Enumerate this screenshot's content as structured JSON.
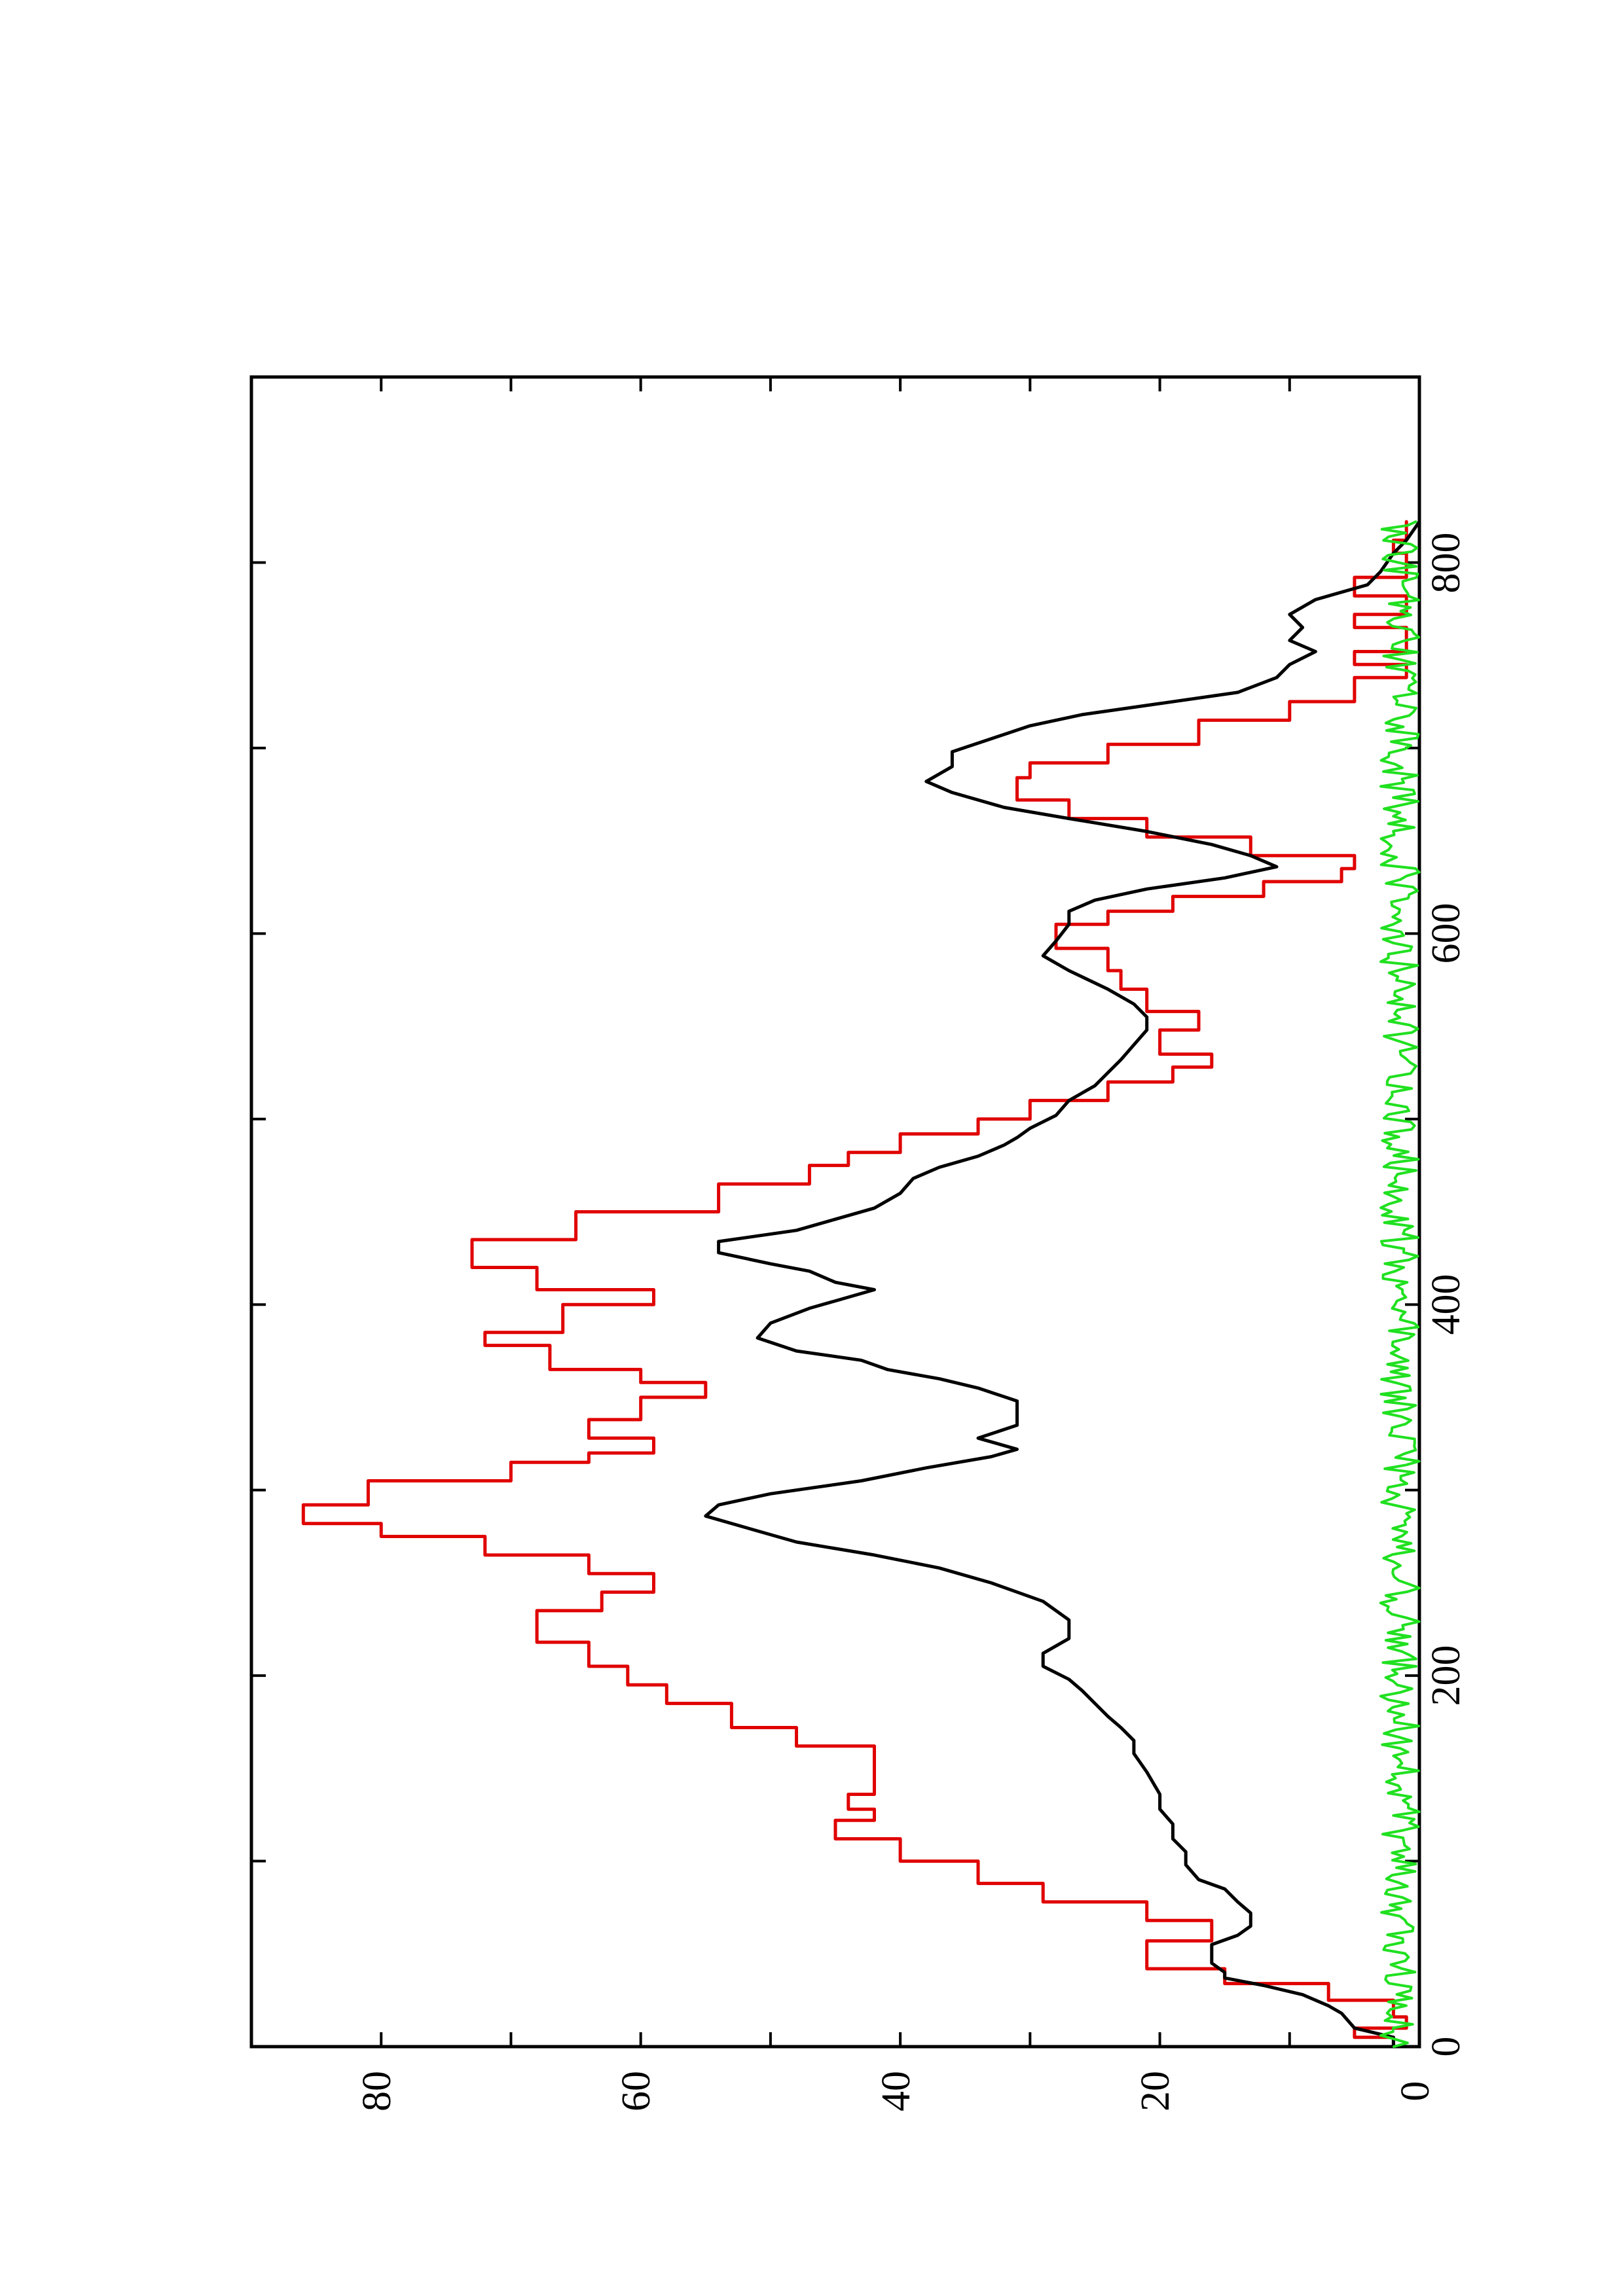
{
  "chart_data": {
    "type": "line",
    "rotated": "90deg-counterclockwise",
    "title": "",
    "xlabel": "",
    "ylabel": "",
    "xlim": [
      0,
      900
    ],
    "ylim": [
      0,
      90
    ],
    "x_ticks": [
      0,
      200,
      400,
      600,
      800
    ],
    "y_ticks": [
      0,
      20,
      40,
      60,
      80
    ],
    "x_tick_labels": [
      "0",
      "200",
      "400",
      "600",
      "800"
    ],
    "y_tick_labels": [
      "0",
      "20",
      "40",
      "60",
      "80"
    ],
    "grid": false,
    "legend": "none",
    "series": [
      {
        "color": "#e00000",
        "style": "step",
        "points": [
          [
            0,
            2
          ],
          [
            5,
            2
          ],
          [
            5,
            5
          ],
          [
            10,
            5
          ],
          [
            10,
            1
          ],
          [
            16,
            1
          ],
          [
            16,
            2
          ],
          [
            25,
            2
          ],
          [
            25,
            7
          ],
          [
            34,
            7
          ],
          [
            34,
            15
          ],
          [
            42,
            15
          ],
          [
            42,
            21
          ],
          [
            57,
            21
          ],
          [
            57,
            16
          ],
          [
            68,
            16
          ],
          [
            68,
            21
          ],
          [
            78,
            21
          ],
          [
            78,
            29
          ],
          [
            88,
            29
          ],
          [
            88,
            34
          ],
          [
            100,
            34
          ],
          [
            100,
            40
          ],
          [
            112,
            40
          ],
          [
            112,
            45
          ],
          [
            122,
            45
          ],
          [
            122,
            42
          ],
          [
            128,
            42
          ],
          [
            128,
            44
          ],
          [
            136,
            44
          ],
          [
            136,
            42
          ],
          [
            162,
            42
          ],
          [
            162,
            48
          ],
          [
            172,
            48
          ],
          [
            172,
            53
          ],
          [
            185,
            53
          ],
          [
            185,
            58
          ],
          [
            195,
            58
          ],
          [
            195,
            61
          ],
          [
            205,
            61
          ],
          [
            205,
            64
          ],
          [
            218,
            64
          ],
          [
            218,
            68
          ],
          [
            235,
            68
          ],
          [
            235,
            63
          ],
          [
            245,
            63
          ],
          [
            245,
            59
          ],
          [
            255,
            59
          ],
          [
            255,
            64
          ],
          [
            265,
            64
          ],
          [
            265,
            72
          ],
          [
            275,
            72
          ],
          [
            275,
            80
          ],
          [
            282,
            80
          ],
          [
            282,
            86
          ],
          [
            292,
            86
          ],
          [
            292,
            81
          ],
          [
            305,
            81
          ],
          [
            305,
            70
          ],
          [
            315,
            70
          ],
          [
            315,
            64
          ],
          [
            320,
            64
          ],
          [
            320,
            59
          ],
          [
            328,
            59
          ],
          [
            328,
            64
          ],
          [
            338,
            64
          ],
          [
            338,
            60
          ],
          [
            350,
            60
          ],
          [
            350,
            55
          ],
          [
            358,
            55
          ],
          [
            358,
            60
          ],
          [
            365,
            60
          ],
          [
            365,
            67
          ],
          [
            378,
            67
          ],
          [
            378,
            72
          ],
          [
            385,
            72
          ],
          [
            385,
            66
          ],
          [
            400,
            66
          ],
          [
            400,
            59
          ],
          [
            408,
            59
          ],
          [
            408,
            68
          ],
          [
            420,
            68
          ],
          [
            420,
            73
          ],
          [
            435,
            73
          ],
          [
            435,
            65
          ],
          [
            450,
            65
          ],
          [
            450,
            54
          ],
          [
            465,
            54
          ],
          [
            465,
            47
          ],
          [
            475,
            47
          ],
          [
            475,
            44
          ],
          [
            482,
            44
          ],
          [
            482,
            40
          ],
          [
            492,
            40
          ],
          [
            492,
            34
          ],
          [
            500,
            34
          ],
          [
            500,
            30
          ],
          [
            510,
            30
          ],
          [
            510,
            24
          ],
          [
            520,
            24
          ],
          [
            520,
            19
          ],
          [
            528,
            19
          ],
          [
            528,
            16
          ],
          [
            535,
            16
          ],
          [
            535,
            20
          ],
          [
            548,
            20
          ],
          [
            548,
            17
          ],
          [
            558,
            17
          ],
          [
            558,
            21
          ],
          [
            570,
            21
          ],
          [
            570,
            23
          ],
          [
            580,
            23
          ],
          [
            580,
            24
          ],
          [
            592,
            24
          ],
          [
            592,
            28
          ],
          [
            605,
            28
          ],
          [
            605,
            24
          ],
          [
            612,
            24
          ],
          [
            612,
            19
          ],
          [
            620,
            19
          ],
          [
            620,
            12
          ],
          [
            628,
            12
          ],
          [
            628,
            6
          ],
          [
            635,
            6
          ],
          [
            635,
            5
          ],
          [
            642,
            5
          ],
          [
            642,
            13
          ],
          [
            652,
            13
          ],
          [
            652,
            21
          ],
          [
            662,
            21
          ],
          [
            662,
            27
          ],
          [
            672,
            27
          ],
          [
            672,
            31
          ],
          [
            684,
            31
          ],
          [
            684,
            30
          ],
          [
            692,
            30
          ],
          [
            692,
            24
          ],
          [
            702,
            24
          ],
          [
            702,
            17
          ],
          [
            715,
            17
          ],
          [
            715,
            10
          ],
          [
            725,
            10
          ],
          [
            725,
            5
          ],
          [
            738,
            5
          ],
          [
            738,
            1
          ],
          [
            745,
            1
          ],
          [
            745,
            5
          ],
          [
            752,
            5
          ],
          [
            752,
            1
          ],
          [
            765,
            1
          ],
          [
            765,
            5
          ],
          [
            772,
            5
          ],
          [
            772,
            1
          ],
          [
            782,
            1
          ],
          [
            782,
            5
          ],
          [
            792,
            5
          ],
          [
            792,
            1
          ],
          [
            805,
            1
          ],
          [
            805,
            2
          ],
          [
            812,
            2
          ],
          [
            812,
            1
          ],
          [
            822,
            1
          ]
        ]
      },
      {
        "color": "#000000",
        "style": "line",
        "points": [
          [
            0,
            2
          ],
          [
            5,
            2
          ],
          [
            10,
            5
          ],
          [
            18,
            6
          ],
          [
            22,
            7
          ],
          [
            28,
            9
          ],
          [
            33,
            12
          ],
          [
            37,
            15
          ],
          [
            40,
            15
          ],
          [
            45,
            16
          ],
          [
            55,
            16
          ],
          [
            60,
            14
          ],
          [
            65,
            13
          ],
          [
            72,
            13
          ],
          [
            78,
            14
          ],
          [
            85,
            15
          ],
          [
            90,
            17
          ],
          [
            98,
            18
          ],
          [
            105,
            18
          ],
          [
            112,
            19
          ],
          [
            120,
            19
          ],
          [
            128,
            20
          ],
          [
            136,
            20
          ],
          [
            148,
            21
          ],
          [
            158,
            22
          ],
          [
            165,
            22
          ],
          [
            172,
            23
          ],
          [
            178,
            24
          ],
          [
            185,
            25
          ],
          [
            192,
            26
          ],
          [
            198,
            27
          ],
          [
            205,
            29
          ],
          [
            212,
            29
          ],
          [
            220,
            27
          ],
          [
            230,
            27
          ],
          [
            240,
            29
          ],
          [
            250,
            33
          ],
          [
            258,
            37
          ],
          [
            265,
            42
          ],
          [
            272,
            48
          ],
          [
            280,
            52
          ],
          [
            286,
            55
          ],
          [
            292,
            54
          ],
          [
            298,
            50
          ],
          [
            305,
            43
          ],
          [
            312,
            38
          ],
          [
            318,
            33
          ],
          [
            322,
            31
          ],
          [
            328,
            34
          ],
          [
            335,
            31
          ],
          [
            342,
            31
          ],
          [
            348,
            31
          ],
          [
            355,
            34
          ],
          [
            360,
            37
          ],
          [
            365,
            41
          ],
          [
            370,
            43
          ],
          [
            375,
            48
          ],
          [
            382,
            51
          ],
          [
            390,
            50
          ],
          [
            398,
            47
          ],
          [
            402,
            45
          ],
          [
            408,
            42
          ],
          [
            412,
            45
          ],
          [
            418,
            47
          ],
          [
            422,
            50
          ],
          [
            428,
            54
          ],
          [
            434,
            54
          ],
          [
            440,
            48
          ],
          [
            446,
            45
          ],
          [
            452,
            42
          ],
          [
            460,
            40
          ],
          [
            468,
            39
          ],
          [
            474,
            37
          ],
          [
            480,
            34
          ],
          [
            486,
            32
          ],
          [
            490,
            31
          ],
          [
            495,
            30
          ],
          [
            502,
            28
          ],
          [
            510,
            27
          ],
          [
            518,
            25
          ],
          [
            525,
            24
          ],
          [
            532,
            23
          ],
          [
            540,
            22
          ],
          [
            548,
            21
          ],
          [
            555,
            21
          ],
          [
            562,
            22
          ],
          [
            570,
            24
          ],
          [
            580,
            27
          ],
          [
            588,
            29
          ],
          [
            596,
            28
          ],
          [
            605,
            27
          ],
          [
            612,
            27
          ],
          [
            618,
            25
          ],
          [
            624,
            21
          ],
          [
            630,
            15
          ],
          [
            636,
            11
          ],
          [
            642,
            13
          ],
          [
            648,
            16
          ],
          [
            655,
            21
          ],
          [
            662,
            27
          ],
          [
            668,
            32
          ],
          [
            676,
            36
          ],
          [
            682,
            38
          ],
          [
            690,
            36
          ],
          [
            698,
            36
          ],
          [
            705,
            33
          ],
          [
            712,
            30
          ],
          [
            718,
            26
          ],
          [
            724,
            20
          ],
          [
            730,
            14
          ],
          [
            738,
            11
          ],
          [
            745,
            10
          ],
          [
            752,
            8
          ],
          [
            758,
            10
          ],
          [
            765,
            9
          ],
          [
            772,
            10
          ],
          [
            780,
            8
          ],
          [
            788,
            4
          ],
          [
            795,
            3
          ],
          [
            805,
            2
          ],
          [
            812,
            1
          ],
          [
            822,
            0
          ]
        ]
      },
      {
        "color": "#20e020",
        "style": "line",
        "noise_amplitude": 3,
        "x_range": [
          0,
          822
        ],
        "count": 410
      }
    ]
  }
}
